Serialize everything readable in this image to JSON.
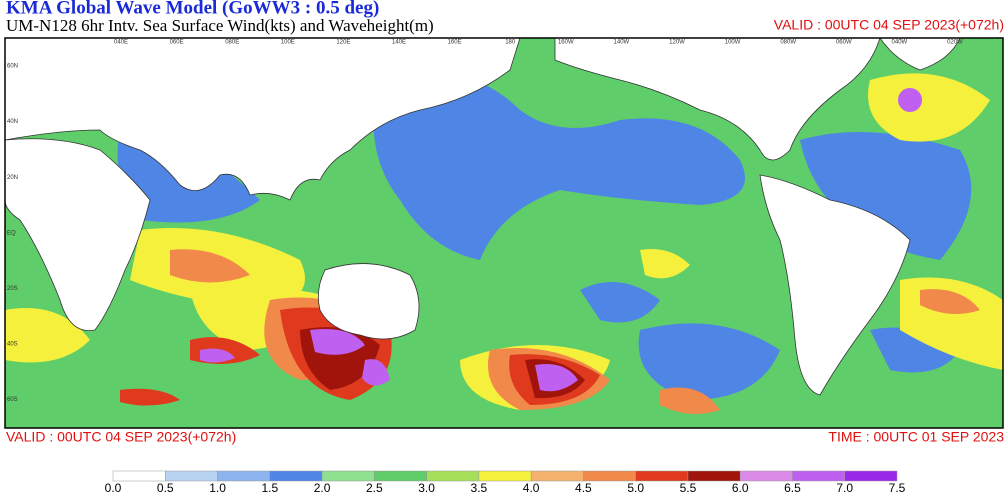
{
  "header": {
    "title": "KMA  Global Wave Model (GoWW3 : 0.5 deg)",
    "subtitle": "UM-N128  6hr Intv. Sea Surface Wind(kts) and Waveheight(m)",
    "valid_top": "VALID : 00UTC 04 SEP 2023(+072h)"
  },
  "map": {
    "lon_labels": [
      "040E",
      "060E",
      "080E",
      "100E",
      "120E",
      "140E",
      "160E",
      "180",
      "160W",
      "140W",
      "120W",
      "100W",
      "080W",
      "060W",
      "040W",
      "020W"
    ],
    "lat_labels": [
      "60N",
      "40N",
      "20N",
      "EQ",
      "20S",
      "40S",
      "60S"
    ]
  },
  "footer": {
    "valid": "VALID : 00UTC 04 SEP 2023(+072h)",
    "time": "TIME : 00UTC 01 SEP 2023"
  },
  "legend": {
    "labels": [
      "0.0",
      "0.5",
      "1.0",
      "1.5",
      "2.0",
      "2.5",
      "3.0",
      "3.5",
      "4.0",
      "4.5",
      "5.0",
      "5.5",
      "6.0",
      "6.5",
      "7.0",
      "7.5"
    ],
    "colors": [
      "#ffffff",
      "#b9d3f2",
      "#8db4ee",
      "#4f86e6",
      "#8fe08f",
      "#5fcd6a",
      "#a6e05a",
      "#f5f03c",
      "#f5b26e",
      "#f0894a",
      "#e03a1e",
      "#a0140c",
      "#dc8ae8",
      "#c060f0",
      "#9a28e8"
    ]
  }
}
